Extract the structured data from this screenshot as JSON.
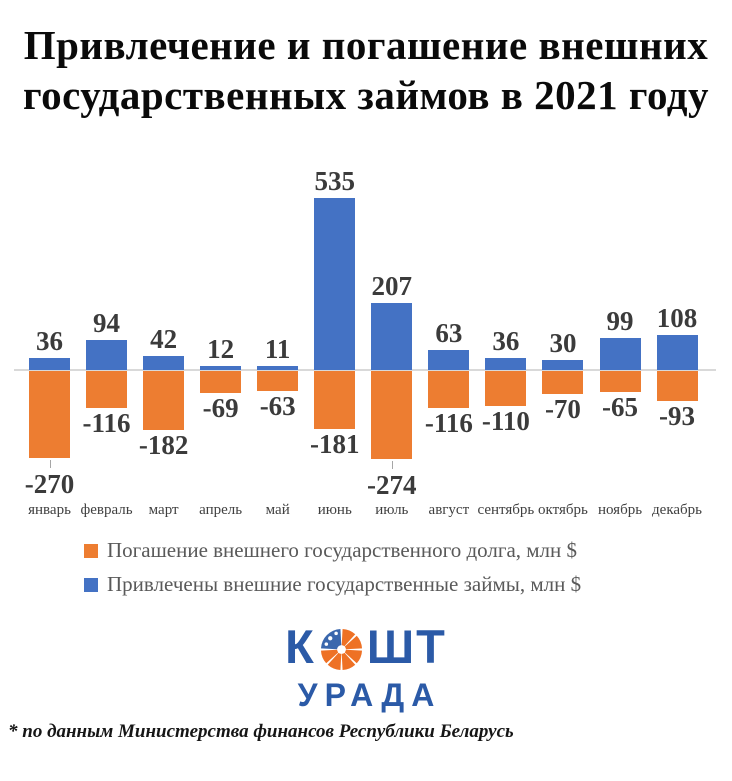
{
  "title": {
    "line1": "Привлечение и погашение внешних",
    "line2": "государственных займов в 2021 году"
  },
  "chart_data": {
    "type": "bar",
    "title": "Привлечение и погашение внешних государственных займов в 2021 году",
    "categories": [
      "январь",
      "февраль",
      "март",
      "апрель",
      "май",
      "июнь",
      "июль",
      "август",
      "сентябрь",
      "октябрь",
      "ноябрь",
      "декабрь"
    ],
    "series": [
      {
        "name": "Погашение внешнего государственного долга, млн $",
        "color": "#ed7d31",
        "values": [
          -270,
          -116,
          -182,
          -69,
          -63,
          -181,
          -274,
          -116,
          -110,
          -70,
          -65,
          -93
        ]
      },
      {
        "name": "Привлечены внешние государственные займы, млн $",
        "color": "#4472c4",
        "values": [
          36,
          94,
          42,
          12,
          11,
          535,
          207,
          63,
          36,
          30,
          99,
          108
        ]
      }
    ],
    "xlabel": "",
    "ylabel": "млн $",
    "ylim": [
      -300,
      560
    ],
    "baseline_value": 0,
    "grid": false,
    "data_labels": true,
    "legend_position": "bottom",
    "axis_line_color": "#d9d9d9"
  },
  "legend": {
    "items": [
      {
        "label": "Погашение внешнего государственного долга, млн $",
        "color": "#ed7d31"
      },
      {
        "label": "Привлечены внешние государственные займы, млн $",
        "color": "#4472c4"
      }
    ]
  },
  "logo": {
    "word_left": "К",
    "word_right": "ШТ",
    "subtitle": "УРАДА",
    "icon": "orange-pie-slices-icon",
    "text_blue": "#2b5aa7",
    "icon_orange": "#ee7125",
    "icon_blue": "#3a67ad"
  },
  "footer": {
    "note": "* по данным Министерства финансов Республики Беларусь"
  }
}
